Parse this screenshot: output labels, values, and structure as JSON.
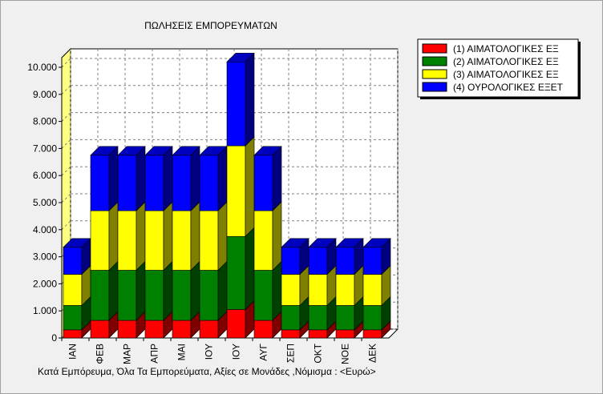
{
  "chart_data": {
    "type": "bar",
    "stacked": true,
    "three_d": true,
    "title": "ΠΩΛΗΣΕΙΣ ΕΜΠΟΡΕΥΜΑΤΩΝ",
    "footer": "Κατά Εμπόρευμα, Όλα Τα Εμπορεύματα,  Αξίες σε Μονάδες ,Νόμισμα : <Ευρώ>",
    "xlabel": "",
    "ylabel": "",
    "ylim": [
      0,
      10000
    ],
    "yticks": [
      "0",
      "1.000",
      "2.000",
      "3.000",
      "4.000",
      "5.000",
      "6.000",
      "7.000",
      "8.000",
      "9.000",
      "10.000"
    ],
    "grid": true,
    "legend_position": "top-right",
    "categories": [
      "ΙΑΝ",
      "ΦΕΒ",
      "ΜΑΡ",
      "ΑΠΡ",
      "ΜΑΙ",
      "ΙΟΥ",
      "ΙΟΥ",
      "ΑΥΓ",
      "ΣΕΠ",
      "ΟΚΤ",
      "ΝΟΕ",
      "ΔΕΚ"
    ],
    "series": [
      {
        "name": "(1) ΑΙΜΑΤΟΛΟΓΙΚΕΣ ΕΞ",
        "color": "#ff0000",
        "values": [
          300,
          650,
          650,
          650,
          650,
          650,
          1050,
          650,
          300,
          300,
          300,
          300
        ]
      },
      {
        "name": "(2) ΑΙΜΑΤΟΛΟΓΙΚΕΣ ΕΞ",
        "color": "#008000",
        "values": [
          900,
          1850,
          1850,
          1850,
          1850,
          1850,
          2700,
          1850,
          900,
          900,
          900,
          900
        ]
      },
      {
        "name": "(3) ΑΙΜΑΤΟΛΟΓΙΚΕΣ ΕΞ",
        "color": "#ffff00",
        "values": [
          1150,
          2200,
          2200,
          2200,
          2200,
          2200,
          3350,
          2200,
          1150,
          1150,
          1150,
          1150
        ]
      },
      {
        "name": "(4) ΟΥΡΟΛΟΓΙΚΕΣ ΕΞΕΤ",
        "color": "#0000ff",
        "values": [
          1000,
          2050,
          2050,
          2050,
          2050,
          2050,
          3100,
          2050,
          1000,
          1000,
          1000,
          1000
        ]
      }
    ]
  }
}
